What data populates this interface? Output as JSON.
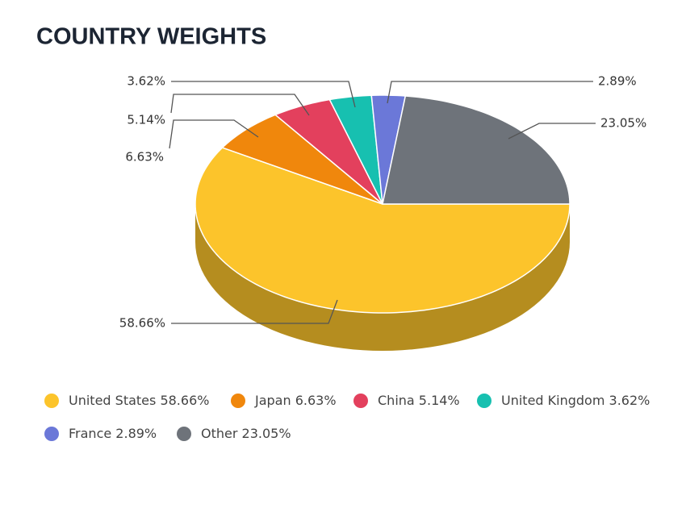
{
  "chart_data": {
    "type": "pie",
    "title": "COUNTRY WEIGHTS",
    "categories": [
      "United States",
      "Japan",
      "China",
      "United Kingdom",
      "France",
      "Other"
    ],
    "values": [
      58.66,
      6.63,
      5.14,
      3.62,
      2.89,
      23.05
    ],
    "value_labels": [
      "58.66%",
      "6.63%",
      "5.14%",
      "3.62%",
      "2.89%",
      "23.05%"
    ],
    "colors": [
      "#fcc42b",
      "#f0870c",
      "#e3405d",
      "#17c0b0",
      "#6b78d8",
      "#6e737a"
    ],
    "legend": "bottom"
  }
}
